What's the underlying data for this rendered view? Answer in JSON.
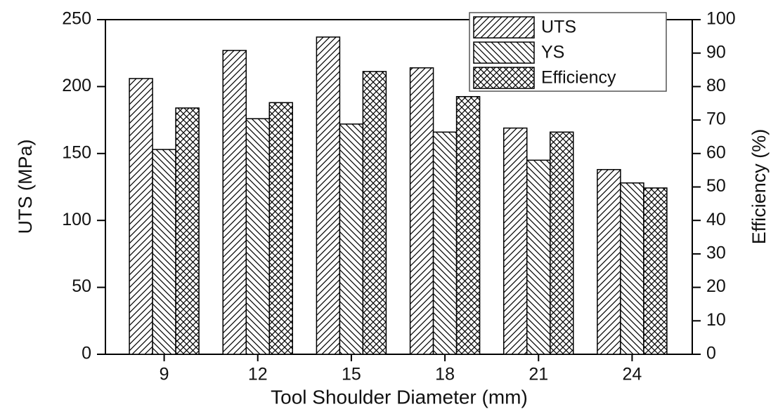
{
  "chart_data": {
    "type": "bar",
    "x_label": "Tool Shoulder Diameter (mm)",
    "y_label": "UTS (MPa)",
    "y2_label": "Efficiency (%)",
    "categories": [
      "9",
      "12",
      "15",
      "18",
      "21",
      "24"
    ],
    "series": [
      {
        "name": "UTS",
        "color": "#000000",
        "hatch": "/",
        "values": [
          206,
          227,
          237,
          214,
          169,
          138
        ]
      },
      {
        "name": "YS",
        "color": "#000000",
        "hatch": "\\",
        "values": [
          153,
          176,
          172,
          166,
          145,
          128
        ]
      },
      {
        "name": "Efficiency",
        "color": "#000000",
        "hatch": "x",
        "axis": "y2",
        "values": [
          73.6,
          75.2,
          84.5,
          77,
          66.4,
          49.7
        ]
      }
    ],
    "ylim": [
      0,
      250
    ],
    "yticks": [
      0,
      50,
      100,
      150,
      200,
      250
    ],
    "y2lim": [
      0,
      100
    ],
    "y2ticks": [
      0,
      10,
      20,
      30,
      40,
      50,
      60,
      70,
      80,
      90,
      100
    ],
    "legend": "upper right",
    "grid": false
  }
}
